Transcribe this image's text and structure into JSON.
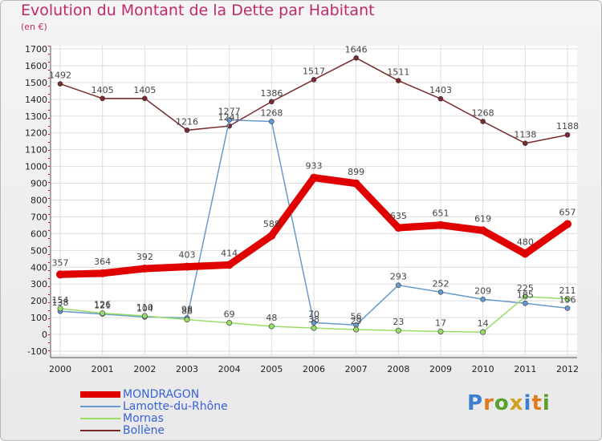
{
  "chart_data": {
    "type": "line",
    "title": "Evolution du Montant de la Dette par Habitant",
    "subtitle": "(en €)",
    "x": [
      "2000",
      "2001",
      "2002",
      "2003",
      "2004",
      "2005",
      "2006",
      "2007",
      "2008",
      "2009",
      "2010",
      "2011",
      "2012"
    ],
    "ylim": [
      -100,
      1700
    ],
    "yticks": [
      "-100",
      "0",
      "100",
      "200",
      "300",
      "400",
      "500",
      "600",
      "700",
      "800",
      "900",
      "1000",
      "1100",
      "1200",
      "1300",
      "1400",
      "1500",
      "1600",
      "1700"
    ],
    "grid": true,
    "legend_position": "bottom-left",
    "series": [
      {
        "name": "MONDRAGON",
        "color": "#e00000",
        "values": [
          357,
          364,
          392,
          403,
          414,
          588,
          933,
          899,
          635,
          651,
          619,
          480,
          657
        ],
        "labels": [
          "357",
          "364",
          "392",
          "403",
          "414",
          "588",
          "933",
          "899",
          "635",
          "651",
          "619",
          "480",
          "657"
        ]
      },
      {
        "name": "Lamotte-du-Rhône",
        "color": "#6699cc",
        "values": [
          138,
          121,
          104,
          98,
          1277,
          1268,
          70,
          56,
          293,
          252,
          209,
          185,
          156
        ],
        "labels": [
          "138",
          "121",
          "104",
          "98",
          "1277",
          "1268",
          "70",
          "56",
          "293",
          "252",
          "209",
          "185",
          "156"
        ]
      },
      {
        "name": "Mornas",
        "color": "#99dd66",
        "values": [
          154,
          126,
          110,
          88,
          69,
          48,
          38,
          29,
          23,
          17,
          14,
          225,
          211
        ],
        "labels": [
          "154",
          "126",
          "110",
          "88",
          "69",
          "48",
          "38",
          "29",
          "23",
          "17",
          "14",
          "225",
          "211"
        ]
      },
      {
        "name": "Bollène",
        "color": "#7a2a2a",
        "values": [
          1492,
          1405,
          1405,
          1216,
          1241,
          1386,
          1517,
          1646,
          1511,
          1403,
          1268,
          1138,
          1188
        ],
        "labels": [
          "1492",
          "1405",
          "1405",
          "1216",
          "1241",
          "1386",
          "1517",
          "1646",
          "1511",
          "1403",
          "1268",
          "1138",
          "1188"
        ]
      }
    ]
  },
  "logo": {
    "text": "Proxiti"
  }
}
